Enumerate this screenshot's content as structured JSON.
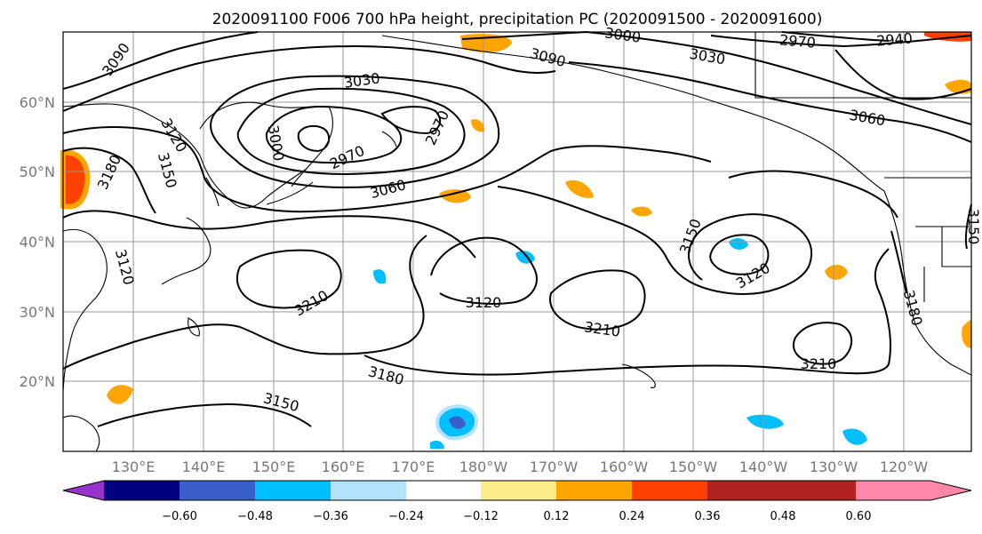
{
  "title": "2020091100 F006 700 hPa height, precipitation PC (2020091500 - 2020091600)",
  "latitude_labels": [
    "60°N",
    "50°N",
    "40°N",
    "30°N",
    "20°N"
  ],
  "longitude_labels": [
    "130°E",
    "140°E",
    "150°E",
    "160°E",
    "170°E",
    "180°W",
    "170°W",
    "160°W",
    "150°W",
    "140°W",
    "130°W",
    "120°W"
  ],
  "contour_labels": [
    "3090",
    "3090",
    "3000",
    "3030",
    "2970",
    "2970",
    "3120",
    "3150",
    "3180",
    "3060",
    "3000",
    "2970",
    "2940",
    "3030",
    "3060",
    "3150",
    "3120",
    "3150",
    "3120",
    "3210",
    "3120",
    "3210",
    "3210",
    "3180",
    "3180",
    "3150",
    "3150"
  ],
  "colorbar": {
    "tick_labels": [
      "−0.60",
      "−0.48",
      "−0.36",
      "−0.24",
      "−0.12",
      "0.12",
      "0.24",
      "0.36",
      "0.48",
      "0.60"
    ],
    "colors": [
      "#9932cc",
      "#000080",
      "#3a5fcd",
      "#00bfff",
      "#b2e2ff",
      "#ffffff",
      "#ffec8b",
      "#ffa500",
      "#ff4000",
      "#b22222",
      "#ff88aa"
    ]
  }
}
